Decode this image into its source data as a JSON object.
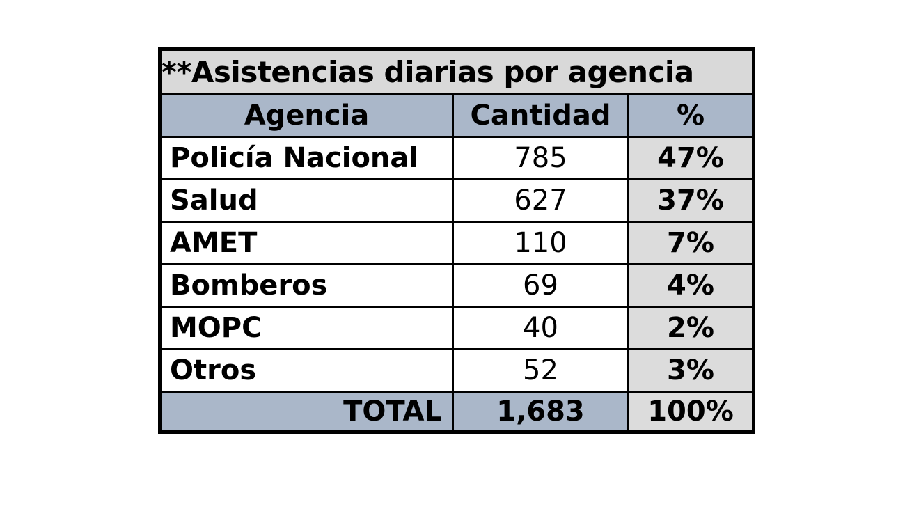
{
  "table": {
    "title": "**Asistencias diarias por agencia",
    "columns": {
      "agencia": "Agencia",
      "cantidad": "Cantidad",
      "pct": "%"
    },
    "rows": [
      {
        "agencia": "Policía Nacional",
        "cantidad": "785",
        "pct": "47%"
      },
      {
        "agencia": "Salud",
        "cantidad": "627",
        "pct": "37%"
      },
      {
        "agencia": "AMET",
        "cantidad": "110",
        "pct": "7%"
      },
      {
        "agencia": "Bomberos",
        "cantidad": "69",
        "pct": "4%"
      },
      {
        "agencia": "MOPC",
        "cantidad": "40",
        "pct": "2%"
      },
      {
        "agencia": "Otros",
        "cantidad": "52",
        "pct": "3%"
      }
    ],
    "total": {
      "label": "TOTAL",
      "cantidad": "1,683",
      "pct": "100%"
    }
  },
  "colors": {
    "title_bg": "#d9d9d9",
    "header_bg": "#aab7c9",
    "pct_cell_bg": "#dcdcdc",
    "total_bg": "#aab7c9",
    "border": "#000000",
    "page_bg": "#ffffff",
    "text": "#000000"
  },
  "chart_data": {
    "type": "table",
    "title": "**Asistencias diarias por agencia",
    "columns": [
      "Agencia",
      "Cantidad",
      "%"
    ],
    "categories": [
      "Policía Nacional",
      "Salud",
      "AMET",
      "Bomberos",
      "MOPC",
      "Otros"
    ],
    "series": [
      {
        "name": "Cantidad",
        "values": [
          785,
          627,
          110,
          69,
          40,
          52
        ]
      },
      {
        "name": "%",
        "values": [
          47,
          37,
          7,
          4,
          2,
          3
        ]
      }
    ],
    "total": {
      "label": "TOTAL",
      "Cantidad": 1683,
      "percent": 100
    }
  }
}
